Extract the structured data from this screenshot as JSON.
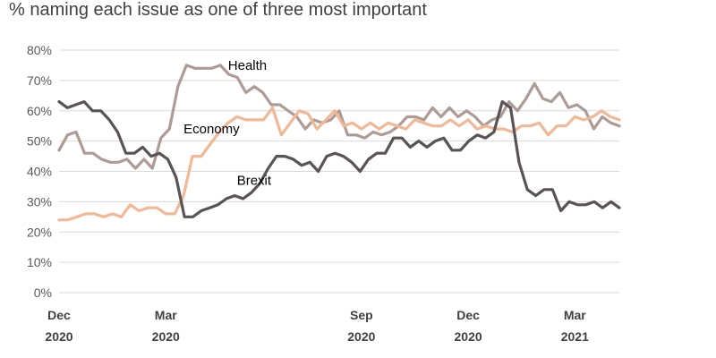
{
  "title": "% naming each issue as one of three most important",
  "chart_data": {
    "type": "line",
    "title": "% naming each issue as one of three most important",
    "xlabel": "",
    "ylabel": "",
    "ylim": [
      0,
      80
    ],
    "yticks": [
      "0%",
      "10%",
      "20%",
      "30%",
      "40%",
      "50%",
      "60%",
      "70%",
      "80%"
    ],
    "xlim": [
      0,
      63
    ],
    "xticks": [
      {
        "x": 0,
        "month": "Dec",
        "year": "2020"
      },
      {
        "x": 12,
        "month": "Mar",
        "year": "2020"
      },
      {
        "x": 34,
        "month": "Sep",
        "year": "2020"
      },
      {
        "x": 46,
        "month": "Dec",
        "year": "2020"
      },
      {
        "x": 58,
        "month": "Mar",
        "year": "2021"
      }
    ],
    "grid": true,
    "legend": "none",
    "colors": {
      "Health": "#ad9b96",
      "Economy": "#f2b896",
      "Brexit": "#5a5355",
      "grid": "#d9d9d9"
    },
    "series": [
      {
        "name": "Health",
        "label_pos": {
          "x": 19,
          "y": 75
        },
        "values": [
          47,
          52,
          53,
          46,
          46,
          44,
          43,
          43,
          44,
          41,
          44,
          41,
          51,
          54,
          68,
          75,
          74,
          74,
          74,
          75,
          72,
          71,
          66,
          68,
          66,
          62,
          62,
          60,
          58,
          54,
          57,
          56,
          57,
          60,
          52,
          52,
          51,
          53,
          52,
          53,
          55,
          58,
          58,
          57,
          61,
          58,
          61,
          58,
          60,
          58,
          55,
          57,
          58,
          63,
          60,
          64,
          69,
          64,
          63,
          66,
          61,
          62,
          60,
          54,
          58,
          56,
          55
        ]
      },
      {
        "name": "Economy",
        "label_pos": {
          "x": 14,
          "y": 54
        },
        "values": [
          24,
          24,
          25,
          26,
          26,
          25,
          26,
          25,
          29,
          27,
          28,
          28,
          26,
          26,
          32,
          45,
          45,
          49,
          53,
          56,
          58,
          57,
          57,
          57,
          61,
          52,
          56,
          60,
          59,
          54,
          57,
          60,
          55,
          56,
          54,
          56,
          54,
          56,
          55,
          54,
          57,
          56,
          55,
          55,
          57,
          55,
          57,
          54,
          55,
          54,
          54,
          53,
          55,
          55,
          56,
          52,
          55,
          55,
          58,
          57,
          58,
          60,
          58,
          57
        ]
      },
      {
        "name": "Brexit",
        "label_pos": {
          "x": 20,
          "y": 37
        },
        "values": [
          63,
          61,
          62,
          63,
          60,
          60,
          57,
          53,
          46,
          46,
          48,
          45,
          46,
          44,
          38,
          25,
          25,
          27,
          28,
          29,
          31,
          32,
          31,
          33,
          36,
          41,
          45,
          45,
          44,
          42,
          43,
          40,
          45,
          46,
          45,
          43,
          40,
          44,
          46,
          46,
          51,
          51,
          48,
          50,
          48,
          50,
          51,
          47,
          47,
          50,
          52,
          51,
          53,
          63,
          61,
          43,
          34,
          32,
          34,
          34,
          27,
          30,
          29,
          29,
          30,
          28,
          30,
          28
        ]
      }
    ]
  }
}
